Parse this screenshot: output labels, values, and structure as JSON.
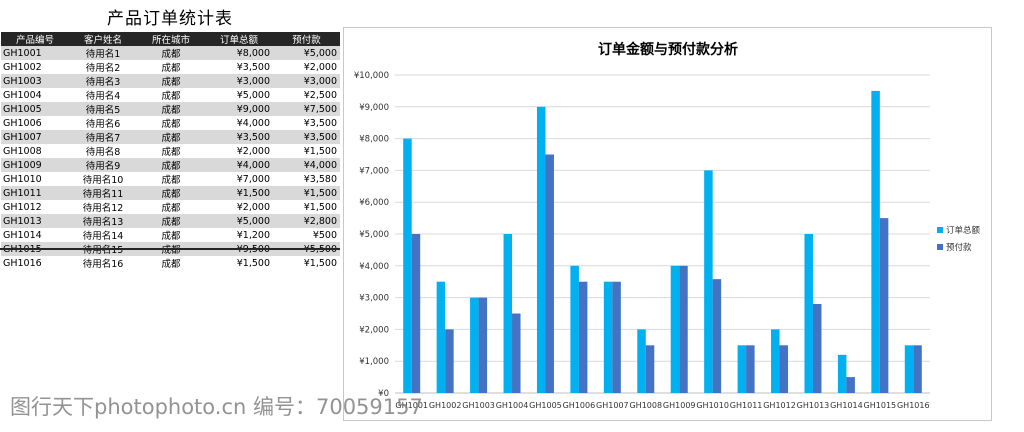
{
  "sheet": {
    "title": "产品订单统计表",
    "headers": [
      "产品编号",
      "客户姓名",
      "所在城市",
      "订单总额",
      "预付款"
    ],
    "rows": [
      [
        "GH1001",
        "待用名1",
        "成都",
        "¥8,000",
        "¥5,000"
      ],
      [
        "GH1002",
        "待用名2",
        "成都",
        "¥3,500",
        "¥2,000"
      ],
      [
        "GH1003",
        "待用名3",
        "成都",
        "¥3,000",
        "¥3,000"
      ],
      [
        "GH1004",
        "待用名4",
        "成都",
        "¥5,000",
        "¥2,500"
      ],
      [
        "GH1005",
        "待用名5",
        "成都",
        "¥9,000",
        "¥7,500"
      ],
      [
        "GH1006",
        "待用名6",
        "成都",
        "¥4,000",
        "¥3,500"
      ],
      [
        "GH1007",
        "待用名7",
        "成都",
        "¥3,500",
        "¥3,500"
      ],
      [
        "GH1008",
        "待用名8",
        "成都",
        "¥2,000",
        "¥1,500"
      ],
      [
        "GH1009",
        "待用名9",
        "成都",
        "¥4,000",
        "¥4,000"
      ],
      [
        "GH1010",
        "待用名10",
        "成都",
        "¥7,000",
        "¥3,580"
      ],
      [
        "GH1011",
        "待用名11",
        "成都",
        "¥1,500",
        "¥1,500"
      ],
      [
        "GH1012",
        "待用名12",
        "成都",
        "¥2,000",
        "¥1,500"
      ],
      [
        "GH1013",
        "待用名13",
        "成都",
        "¥5,000",
        "¥2,800"
      ],
      [
        "GH1014",
        "待用名14",
        "成都",
        "¥1,200",
        "¥500"
      ],
      [
        "GH1015",
        "待用名15",
        "成都",
        "¥9,500",
        "¥5,500"
      ],
      [
        "GH1016",
        "待用名16",
        "成都",
        "¥1,500",
        "¥1,500"
      ]
    ]
  },
  "chart_data": {
    "type": "bar",
    "title": "订单金额与预付款分析",
    "categories": [
      "GH1001",
      "GH1002",
      "GH1003",
      "GH1004",
      "GH1005",
      "GH1006",
      "GH1007",
      "GH1008",
      "GH1009",
      "GH1010",
      "GH1011",
      "GH1012",
      "GH1013",
      "GH1014",
      "GH1015",
      "GH1016"
    ],
    "series": [
      {
        "name": "订单总额",
        "color": "#00b0f0",
        "values": [
          8000,
          3500,
          3000,
          5000,
          9000,
          4000,
          3500,
          2000,
          4000,
          7000,
          1500,
          2000,
          5000,
          1200,
          9500,
          1500
        ]
      },
      {
        "name": "预付款",
        "color": "#4472c4",
        "values": [
          5000,
          2000,
          3000,
          2500,
          7500,
          3500,
          3500,
          1500,
          4000,
          3580,
          1500,
          1500,
          2800,
          500,
          5500,
          1500
        ]
      }
    ],
    "ylim": [
      0,
      10000
    ],
    "ytick_step": 1000,
    "ytick_labels": [
      "¥0",
      "¥1,000",
      "¥2,000",
      "¥3,000",
      "¥4,000",
      "¥5,000",
      "¥6,000",
      "¥7,000",
      "¥8,000",
      "¥9,000",
      "¥10,000"
    ],
    "grid": true,
    "legend_position": "right",
    "xlabel": "",
    "ylabel": ""
  },
  "watermark": {
    "text": "图行天下photophoto.cn  编号：70059157",
    "color": "#808080"
  }
}
